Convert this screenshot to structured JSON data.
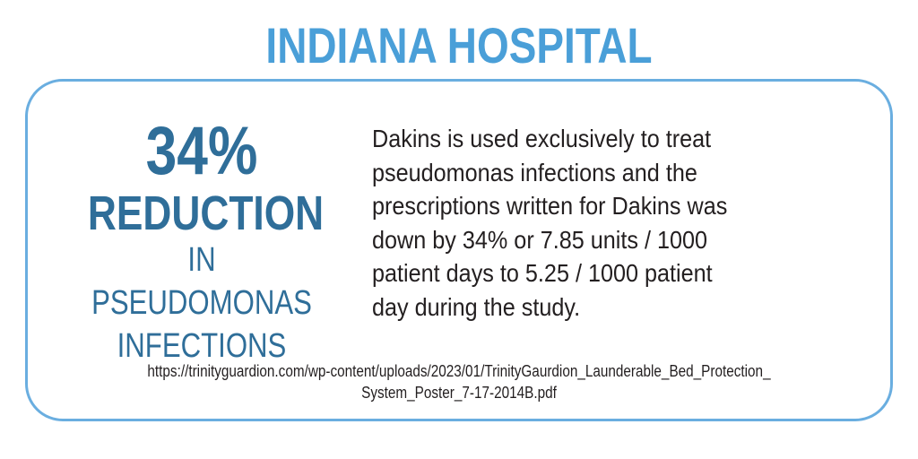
{
  "header": {
    "title": "INDIANA HOSPITAL"
  },
  "stat": {
    "value": "34%",
    "lines": [
      "REDUCTION",
      "IN PSEUDOMONAS",
      "INFECTIONS"
    ]
  },
  "body": {
    "lines": [
      "Dakins is used exclusively to treat",
      "pseudomonas infections and the",
      "prescriptions written for Dakins was",
      "down by 34% or 7.85 units / 1000",
      "patient days to 5.25 / 1000 patient",
      "day during the study."
    ]
  },
  "source": {
    "lines": [
      "https://trinityguardion.com/wp-content/uploads/2023/01/TrinityGaurdion_Launderable_Bed_Protection_",
      "System_Poster_7-17-2014B.pdf"
    ]
  }
}
